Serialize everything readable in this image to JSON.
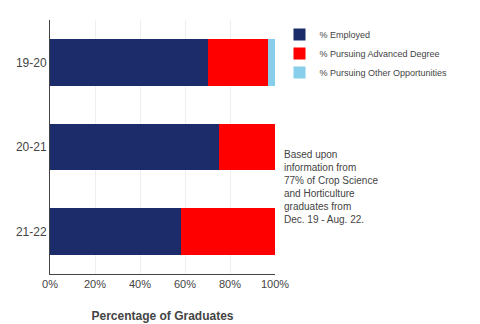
{
  "chart_data": {
    "type": "bar",
    "orientation": "horizontal",
    "stacked": true,
    "categories": [
      "19-20",
      "20-21",
      "21-22"
    ],
    "series": [
      {
        "name": "% Employed",
        "color": "#1C2C6B",
        "values": [
          70,
          75,
          58
        ]
      },
      {
        "name": "% Pursuing Advanced Degree",
        "color": "#FF0000",
        "values": [
          27,
          25,
          42
        ]
      },
      {
        "name": "% Pursuing Other Opportunities",
        "color": "#87CEEB",
        "values": [
          3,
          0,
          0
        ]
      }
    ],
    "xlabel": "Percentage of Graduates",
    "xlim": [
      0,
      100
    ],
    "xticks": [
      {
        "value": 0,
        "label": "0%"
      },
      {
        "value": 20,
        "label": "20%"
      },
      {
        "value": 40,
        "label": "40%"
      },
      {
        "value": 60,
        "label": "60%"
      },
      {
        "value": 80,
        "label": "80%"
      },
      {
        "value": 100,
        "label": "100%"
      }
    ],
    "grid": true,
    "legend": "right",
    "annotation": "Based upon\ninformation from\n77% of Crop Science\nand Horticulture\ngraduates from\nDec. 19 - Aug. 22."
  }
}
